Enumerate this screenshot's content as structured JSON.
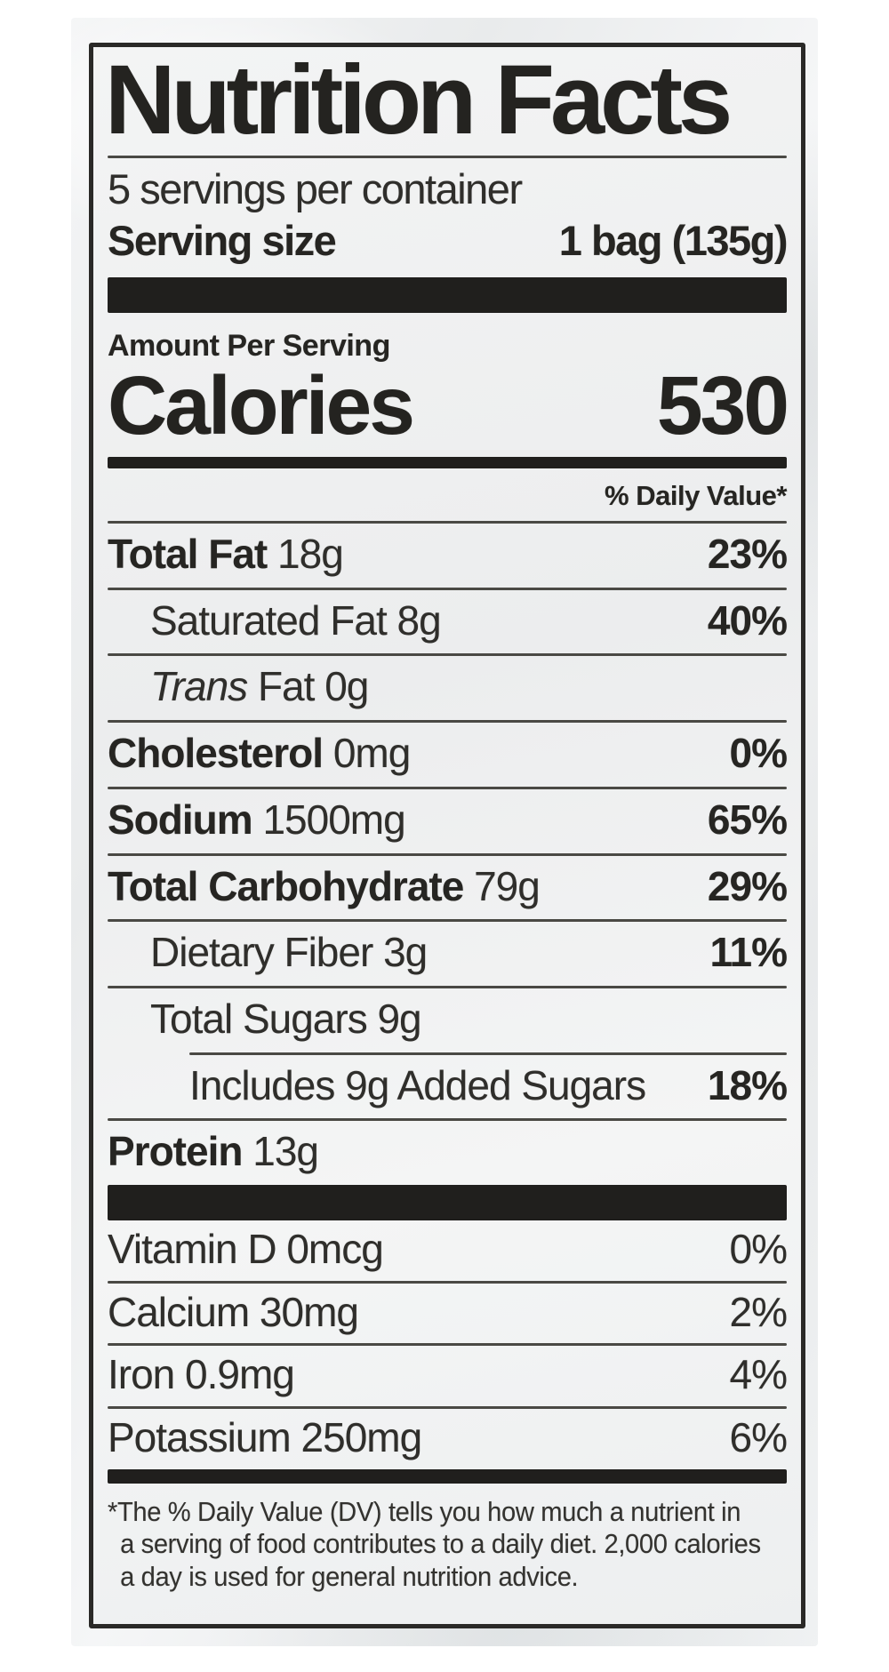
{
  "colors": {
    "ink": "#2f2e2b",
    "bold_ink": "#242320",
    "separator_bar": "#201f1d",
    "package_background": "#eceeef",
    "label_background": "#f3f4f4"
  },
  "label": {
    "title": "Nutrition Facts",
    "servings_per_container": "5 servings per container",
    "serving_size_label": "Serving size",
    "serving_size_value": "1 bag (135g)",
    "amount_per_serving": "Amount Per Serving",
    "calories_label": "Calories",
    "calories_value": "530",
    "daily_value_header": "% Daily Value*",
    "nutrients": [
      {
        "segments": [
          {
            "text": "Total Fat",
            "bold": true
          },
          {
            "text": " 18g"
          }
        ],
        "percent": "23%",
        "percent_bold": true,
        "indent": 0,
        "rule": "full"
      },
      {
        "segments": [
          {
            "text": "Saturated Fat 8g"
          }
        ],
        "percent": "40%",
        "percent_bold": true,
        "indent": 1,
        "rule": "full"
      },
      {
        "segments": [
          {
            "text": "Trans",
            "italic": true
          },
          {
            "text": " Fat 0g"
          }
        ],
        "percent": "",
        "percent_bold": false,
        "indent": 1,
        "rule": "full"
      },
      {
        "segments": [
          {
            "text": "Cholesterol",
            "bold": true
          },
          {
            "text": " 0mg"
          }
        ],
        "percent": "0%",
        "percent_bold": true,
        "indent": 0,
        "rule": "full"
      },
      {
        "segments": [
          {
            "text": "Sodium",
            "bold": true
          },
          {
            "text": " 1500mg"
          }
        ],
        "percent": "65%",
        "percent_bold": true,
        "indent": 0,
        "rule": "full"
      },
      {
        "segments": [
          {
            "text": "Total Carbohydrate",
            "bold": true
          },
          {
            "text": " 79g"
          }
        ],
        "percent": "29%",
        "percent_bold": true,
        "indent": 0,
        "rule": "full"
      },
      {
        "segments": [
          {
            "text": "Dietary Fiber 3g"
          }
        ],
        "percent": "11%",
        "percent_bold": true,
        "indent": 1,
        "rule": "full"
      },
      {
        "segments": [
          {
            "text": "Total Sugars 9g"
          }
        ],
        "percent": "",
        "percent_bold": false,
        "indent": 1,
        "rule": "full"
      },
      {
        "segments": [
          {
            "text": "Includes 9g Added Sugars"
          }
        ],
        "percent": "18%",
        "percent_bold": true,
        "indent": 2,
        "rule": "partial"
      },
      {
        "segments": [
          {
            "text": "Protein",
            "bold": true
          },
          {
            "text": " 13g"
          }
        ],
        "percent": "",
        "percent_bold": false,
        "indent": 0,
        "rule": "full"
      }
    ],
    "vitamins": [
      {
        "segments": [
          {
            "text": "Vitamin D 0mcg"
          }
        ],
        "percent": "0%",
        "percent_bold": false,
        "indent": 0,
        "rule": "none"
      },
      {
        "segments": [
          {
            "text": "Calcium 30mg"
          }
        ],
        "percent": "2%",
        "percent_bold": false,
        "indent": 0,
        "rule": "full"
      },
      {
        "segments": [
          {
            "text": "Iron 0.9mg"
          }
        ],
        "percent": "4%",
        "percent_bold": false,
        "indent": 0,
        "rule": "full"
      },
      {
        "segments": [
          {
            "text": "Potassium 250mg"
          }
        ],
        "percent": "6%",
        "percent_bold": false,
        "indent": 0,
        "rule": "full"
      }
    ],
    "footnote_lines": [
      "*The % Daily Value (DV) tells you how much a nutrient in",
      "a serving of food contributes to a daily diet. 2,000 calories",
      "a day is used for general nutrition advice."
    ]
  }
}
